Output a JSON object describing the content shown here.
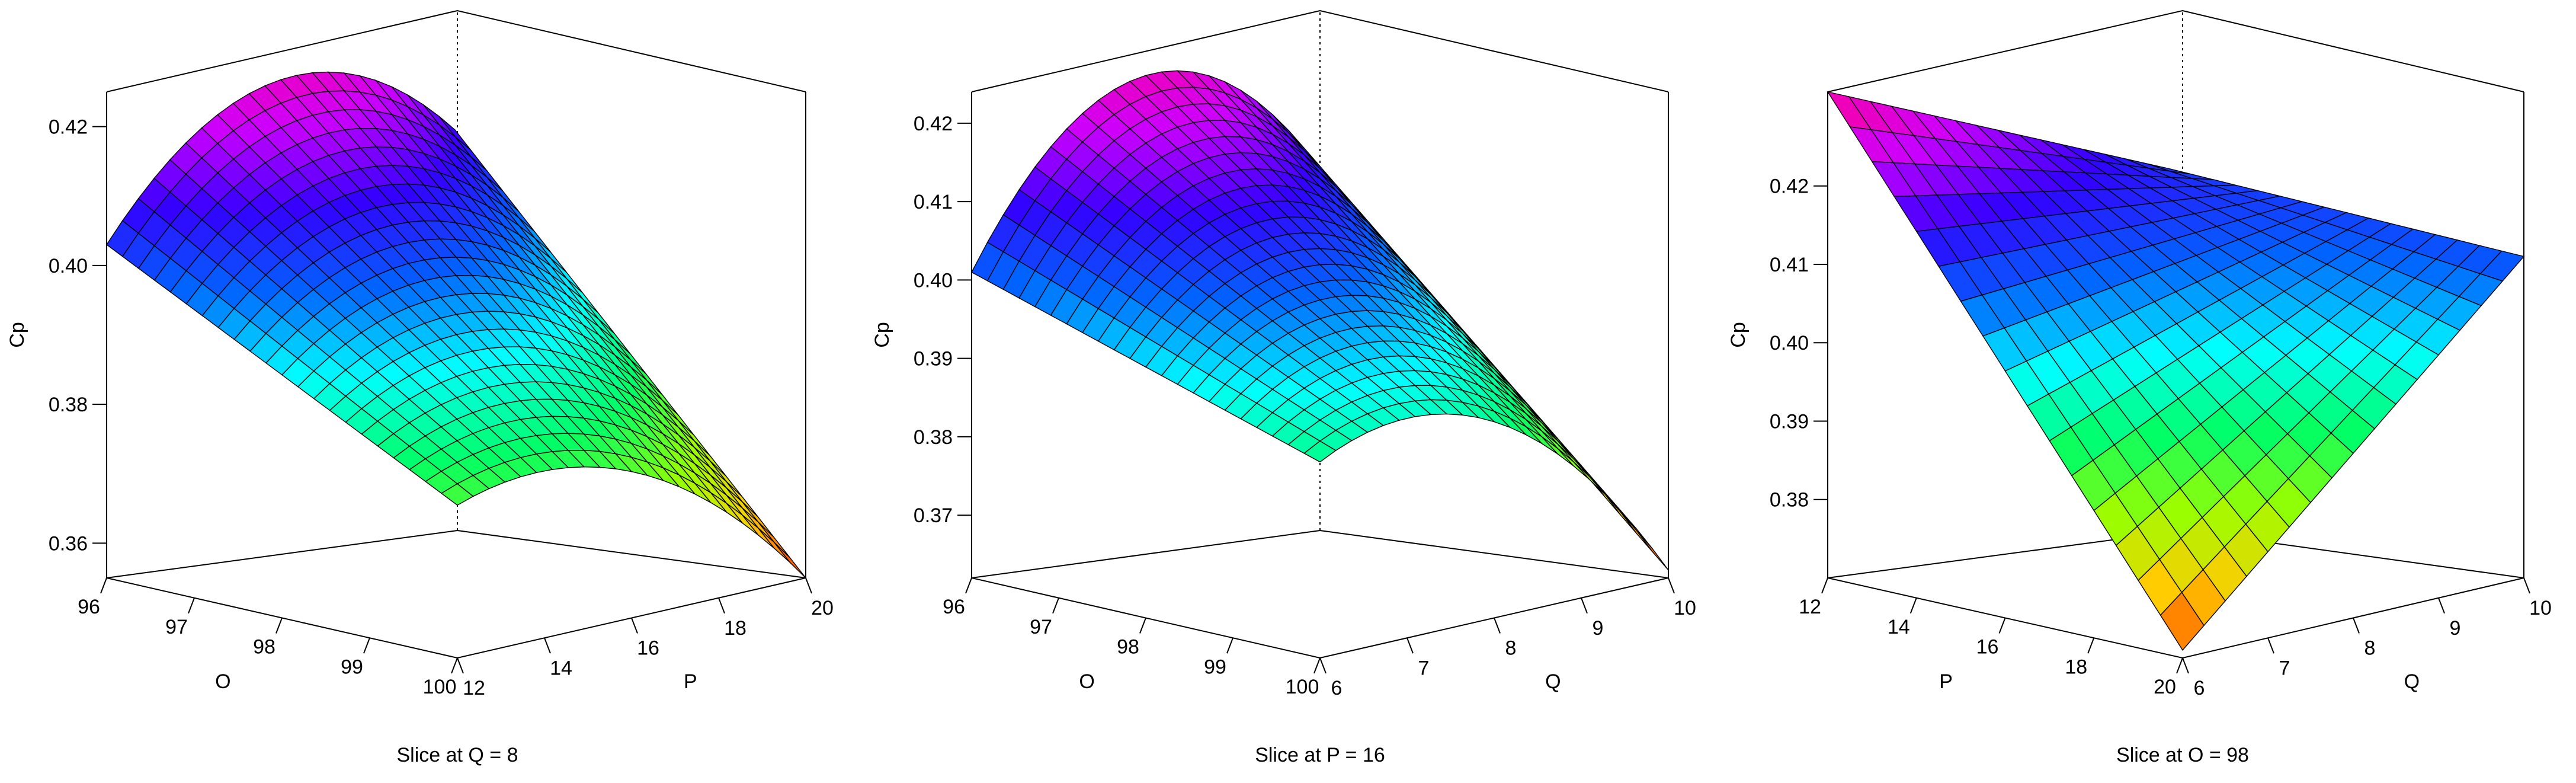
{
  "chart_data": [
    {
      "type": "surface3d",
      "caption": "Slice at Q = 8",
      "zlabel": "Cp",
      "zticks": [
        "0.36",
        "0.38",
        "0.40",
        "0.42"
      ],
      "zlim": [
        0.355,
        0.425
      ],
      "left_axis": {
        "label": "O",
        "ticks": [
          "96",
          "97",
          "98",
          "99",
          "100"
        ],
        "range": [
          96,
          100
        ]
      },
      "right_axis": {
        "label": "P",
        "ticks": [
          "12",
          "14",
          "16",
          "18",
          "20"
        ],
        "range": [
          12,
          20
        ]
      },
      "model": {
        "fixed": "Q = 8",
        "corners": {
          "u0v0": 0.403,
          "u1v0": 0.377,
          "u0v1": 0.408,
          "u1v1": 0.355
        },
        "peak": 0.421
      },
      "grid": 22
    },
    {
      "type": "surface3d",
      "caption": "Slice at P = 16",
      "zlabel": "Cp",
      "zticks": [
        "0.37",
        "0.38",
        "0.39",
        "0.40",
        "0.41",
        "0.42"
      ],
      "zlim": [
        0.362,
        0.424
      ],
      "left_axis": {
        "label": "O",
        "ticks": [
          "96",
          "97",
          "98",
          "99",
          "100"
        ],
        "range": [
          96,
          100
        ]
      },
      "right_axis": {
        "label": "Q",
        "ticks": [
          "6",
          "7",
          "8",
          "9",
          "10"
        ],
        "range": [
          6,
          10
        ]
      },
      "model": {
        "fixed": "P = 16",
        "corners": {
          "u0v0": 0.401,
          "u1v0": 0.387,
          "u0v1": 0.404,
          "u1v1": 0.363
        },
        "peak": 0.421
      },
      "grid": 22
    },
    {
      "type": "surface3d",
      "caption": "Slice at O = 98",
      "zlabel": "Cp",
      "zticks": [
        "0.38",
        "0.39",
        "0.40",
        "0.41",
        "0.42"
      ],
      "zlim": [
        0.37,
        0.432
      ],
      "left_axis": {
        "label": "P",
        "ticks": [
          "12",
          "14",
          "16",
          "18",
          "20"
        ],
        "range": [
          12,
          20
        ]
      },
      "right_axis": {
        "label": "Q",
        "ticks": [
          "6",
          "7",
          "8",
          "9",
          "10"
        ],
        "range": [
          6,
          10
        ]
      },
      "model": {
        "fixed": "O = 98",
        "corners": {
          "u0v0": 0.432,
          "u1v0": 0.371,
          "u0v1": 0.412,
          "u1v1": 0.411
        }
      },
      "grid": 16
    }
  ],
  "colors": {
    "palette": [
      "#ff3300",
      "#ffcc00",
      "#99ff00",
      "#00ff66",
      "#00ffff",
      "#0066ff",
      "#3300ff",
      "#cc00ff",
      "#ff0099"
    ]
  }
}
